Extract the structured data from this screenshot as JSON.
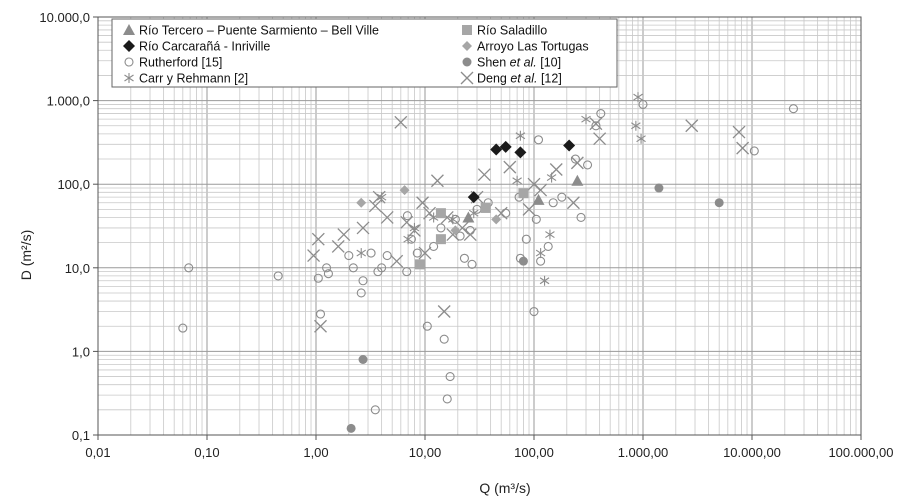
{
  "chart_data": {
    "type": "scatter",
    "x_scale": "log",
    "y_scale": "log",
    "xlabel": "Q (m³/s)",
    "ylabel": "D (m²/s)",
    "xlim": [
      0.01,
      100000
    ],
    "ylim": [
      0.1,
      10000
    ],
    "x_ticks": [
      "0,01",
      "0,10",
      "1,00",
      "10,00",
      "100,00",
      "1.000,00",
      "10.000,00",
      "100.000,00"
    ],
    "y_ticks": [
      "0,1",
      "1,0",
      "10,0",
      "100,0",
      "1.000,0",
      "10.000,0"
    ],
    "grid": true,
    "legend_position": "top",
    "series": [
      {
        "name": "Río Tercero – Puente Sarmiento – Bell Ville",
        "marker": "triangle",
        "color": "#8c8c8c",
        "points": [
          [
            25,
            40
          ],
          [
            110,
            65
          ],
          [
            250,
            110
          ]
        ]
      },
      {
        "name": "Río Saladillo",
        "marker": "square",
        "color": "#a6a6a6",
        "points": [
          [
            9,
            11
          ],
          [
            14,
            22
          ],
          [
            14,
            45
          ],
          [
            36,
            52
          ],
          [
            80,
            78
          ]
        ]
      },
      {
        "name": "Río Carcarañá - Inriville",
        "marker": "diamond",
        "color": "#1a1a1a",
        "points": [
          [
            28,
            70
          ],
          [
            45,
            260
          ],
          [
            55,
            280
          ],
          [
            75,
            240
          ],
          [
            210,
            290
          ]
        ]
      },
      {
        "name": "Arroyo Las Tortugas",
        "marker": "diamond-small",
        "color": "#a6a6a6",
        "points": [
          [
            2.6,
            60
          ],
          [
            6.5,
            85
          ],
          [
            19,
            28
          ],
          [
            45,
            38
          ]
        ]
      },
      {
        "name": "Rutherford [15]",
        "marker": "circle-open",
        "color": "#8c8c8c",
        "points": [
          [
            0.06,
            1.9
          ],
          [
            0.068,
            10
          ],
          [
            0.45,
            8
          ],
          [
            1.05,
            7.5
          ],
          [
            1.1,
            2.8
          ],
          [
            1.25,
            10
          ],
          [
            1.3,
            8.5
          ],
          [
            2,
            14
          ],
          [
            2.2,
            10
          ],
          [
            2.6,
            5
          ],
          [
            2.7,
            7
          ],
          [
            3.2,
            15
          ],
          [
            3.5,
            0.2
          ],
          [
            3.7,
            9
          ],
          [
            4,
            10
          ],
          [
            4.5,
            14
          ],
          [
            6.8,
            9
          ],
          [
            6.9,
            42
          ],
          [
            7.5,
            22
          ],
          [
            8.5,
            15
          ],
          [
            10.5,
            2
          ],
          [
            12,
            18
          ],
          [
            14,
            30
          ],
          [
            15,
            1.4
          ],
          [
            16,
            0.27
          ],
          [
            17,
            0.5
          ],
          [
            19,
            38
          ],
          [
            21,
            24
          ],
          [
            23,
            13
          ],
          [
            26,
            28
          ],
          [
            27,
            11
          ],
          [
            30,
            50
          ],
          [
            38,
            60
          ],
          [
            55,
            45
          ],
          [
            73,
            70
          ],
          [
            75,
            13
          ],
          [
            85,
            22
          ],
          [
            100,
            3
          ],
          [
            105,
            38
          ],
          [
            110,
            340
          ],
          [
            115,
            12
          ],
          [
            135,
            18
          ],
          [
            150,
            60
          ],
          [
            180,
            70
          ],
          [
            240,
            200
          ],
          [
            270,
            40
          ],
          [
            310,
            170
          ],
          [
            370,
            500
          ],
          [
            410,
            700
          ],
          [
            1000,
            900
          ],
          [
            10500,
            250
          ],
          [
            24000,
            800
          ]
        ]
      },
      {
        "name": "Shen et al. [10]",
        "marker": "circle-filled",
        "color": "#8c8c8c",
        "points": [
          [
            2.1,
            0.12
          ],
          [
            2.7,
            0.8
          ],
          [
            80,
            12
          ],
          [
            1400,
            90
          ],
          [
            5000,
            60
          ]
        ]
      },
      {
        "name": "Carr y Rehmann [2]",
        "marker": "asterisk",
        "color": "#8c8c8c",
        "points": [
          [
            2.6,
            15
          ],
          [
            4,
            70
          ],
          [
            7,
            22
          ],
          [
            8,
            30
          ],
          [
            12,
            40
          ],
          [
            18,
            38
          ],
          [
            28,
            45
          ],
          [
            70,
            110
          ],
          [
            75,
            380
          ],
          [
            115,
            15
          ],
          [
            125,
            7
          ],
          [
            140,
            25
          ],
          [
            145,
            120
          ],
          [
            300,
            600
          ],
          [
            860,
            500
          ],
          [
            900,
            1100
          ],
          [
            960,
            350
          ]
        ]
      },
      {
        "name": "Deng et al. [12]",
        "marker": "cross",
        "color": "#8c8c8c",
        "points": [
          [
            0.95,
            14
          ],
          [
            1.05,
            22
          ],
          [
            1.1,
            2
          ],
          [
            1.6,
            18
          ],
          [
            1.8,
            25
          ],
          [
            2.7,
            30
          ],
          [
            3.5,
            55
          ],
          [
            3.8,
            70
          ],
          [
            4.5,
            40
          ],
          [
            5.5,
            12
          ],
          [
            6,
            550
          ],
          [
            6.8,
            35
          ],
          [
            8,
            28
          ],
          [
            9.5,
            60
          ],
          [
            10,
            15
          ],
          [
            11,
            45
          ],
          [
            13,
            110
          ],
          [
            15,
            3
          ],
          [
            16,
            40
          ],
          [
            18,
            25
          ],
          [
            22,
            30
          ],
          [
            26,
            25
          ],
          [
            30,
            70
          ],
          [
            35,
            130
          ],
          [
            50,
            45
          ],
          [
            60,
            160
          ],
          [
            90,
            50
          ],
          [
            100,
            100
          ],
          [
            115,
            85
          ],
          [
            160,
            150
          ],
          [
            230,
            60
          ],
          [
            250,
            180
          ],
          [
            370,
            530
          ],
          [
            400,
            350
          ],
          [
            2800,
            500
          ],
          [
            7600,
            420
          ],
          [
            8200,
            270
          ]
        ]
      }
    ]
  }
}
